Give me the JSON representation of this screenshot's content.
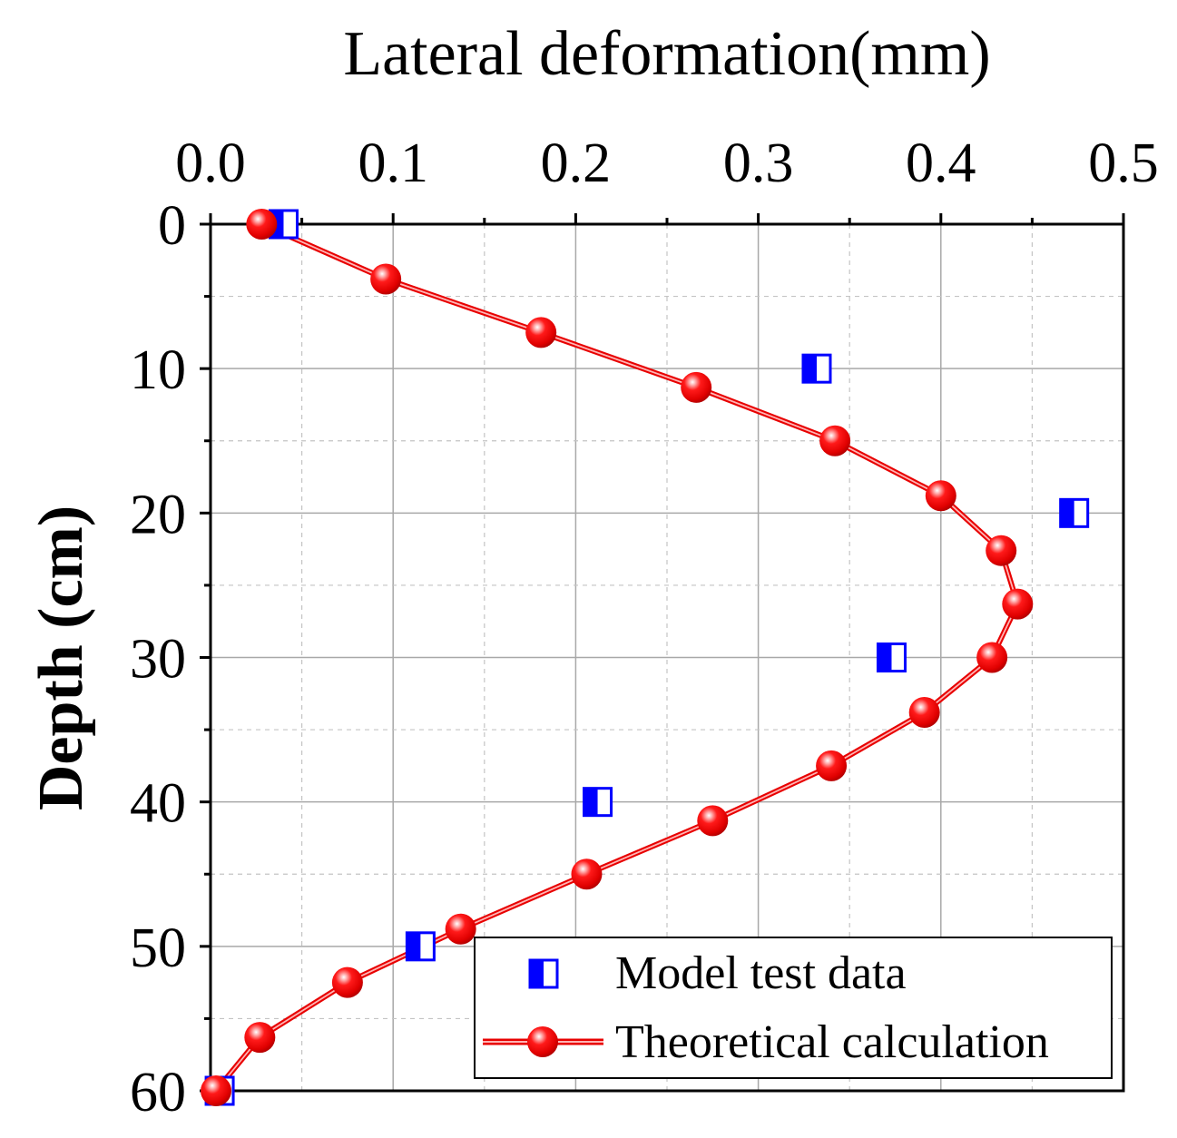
{
  "chart_data": {
    "type": "scatter",
    "title": "",
    "xlabel": "Lateral deformation(mm)",
    "ylabel": "Depth (cm)",
    "x_axis_position": "top",
    "y_axis_inverted": true,
    "xlim": [
      0.0,
      0.5
    ],
    "ylim": [
      0,
      60
    ],
    "x_ticks": [
      "0.0",
      "0.1",
      "0.2",
      "0.3",
      "0.4",
      "0.5"
    ],
    "y_ticks": [
      "0",
      "10",
      "20",
      "30",
      "40",
      "50",
      "60"
    ],
    "grid": true,
    "legend_position": "bottom-right",
    "series": [
      {
        "name": "Model test data",
        "kind": "markers",
        "marker": "half-filled-square",
        "color": "#0000ff",
        "points": [
          {
            "x": 0.04,
            "y": 0
          },
          {
            "x": 0.332,
            "y": 10
          },
          {
            "x": 0.473,
            "y": 20
          },
          {
            "x": 0.373,
            "y": 30
          },
          {
            "x": 0.212,
            "y": 40
          },
          {
            "x": 0.115,
            "y": 50
          },
          {
            "x": 0.005,
            "y": 60
          }
        ]
      },
      {
        "name": "Theoretical calculation",
        "kind": "line+markers",
        "marker": "sphere",
        "color": "#ff0000",
        "points": [
          {
            "x": 0.028,
            "y": 0
          },
          {
            "x": 0.096,
            "y": 3.8
          },
          {
            "x": 0.181,
            "y": 7.5
          },
          {
            "x": 0.266,
            "y": 11.3
          },
          {
            "x": 0.342,
            "y": 15
          },
          {
            "x": 0.4,
            "y": 18.8
          },
          {
            "x": 0.433,
            "y": 22.6
          },
          {
            "x": 0.442,
            "y": 26.3
          },
          {
            "x": 0.428,
            "y": 30
          },
          {
            "x": 0.391,
            "y": 33.8
          },
          {
            "x": 0.34,
            "y": 37.5
          },
          {
            "x": 0.275,
            "y": 41.3
          },
          {
            "x": 0.206,
            "y": 45
          },
          {
            "x": 0.137,
            "y": 48.8
          },
          {
            "x": 0.075,
            "y": 52.5
          },
          {
            "x": 0.027,
            "y": 56.3
          },
          {
            "x": 0.003,
            "y": 60
          }
        ]
      }
    ]
  }
}
